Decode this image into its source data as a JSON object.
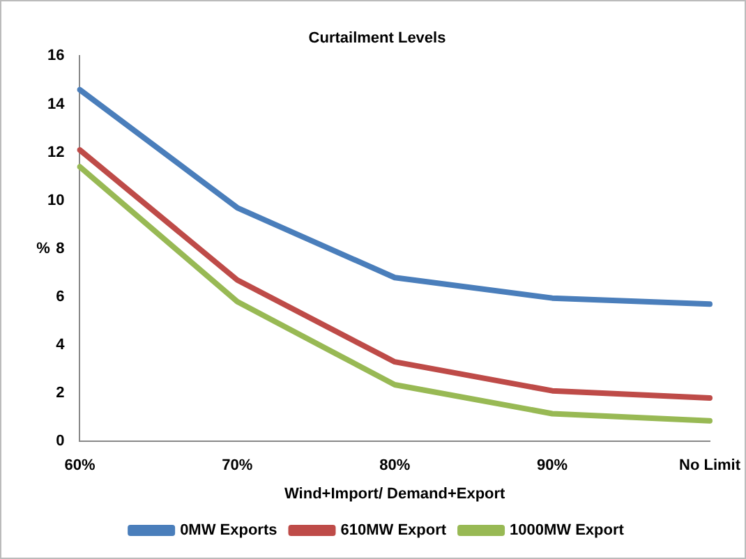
{
  "chart_data": {
    "type": "line",
    "title": "Curtailment Levels",
    "xlabel": "Wind+Import/ Demand+Export",
    "ylabel": "%",
    "categories": [
      "60%",
      "70%",
      "80%",
      "90%",
      "No Limit"
    ],
    "series": [
      {
        "name": "0MW Exports",
        "color": "#4a7ebb",
        "values": [
          14.6,
          9.7,
          6.8,
          5.95,
          5.7
        ]
      },
      {
        "name": "610MW Export",
        "color": "#be4b48",
        "values": [
          12.1,
          6.7,
          3.3,
          2.1,
          1.8
        ]
      },
      {
        "name": "1000MW Export",
        "color": "#98b954",
        "values": [
          11.4,
          5.8,
          2.35,
          1.15,
          0.85
        ]
      }
    ],
    "ylim": [
      0,
      16
    ],
    "yticks": [
      0,
      2,
      4,
      6,
      8,
      10,
      12,
      14,
      16
    ],
    "grid": false,
    "legend": "bottom",
    "marker": "none",
    "line_style": "solid"
  }
}
